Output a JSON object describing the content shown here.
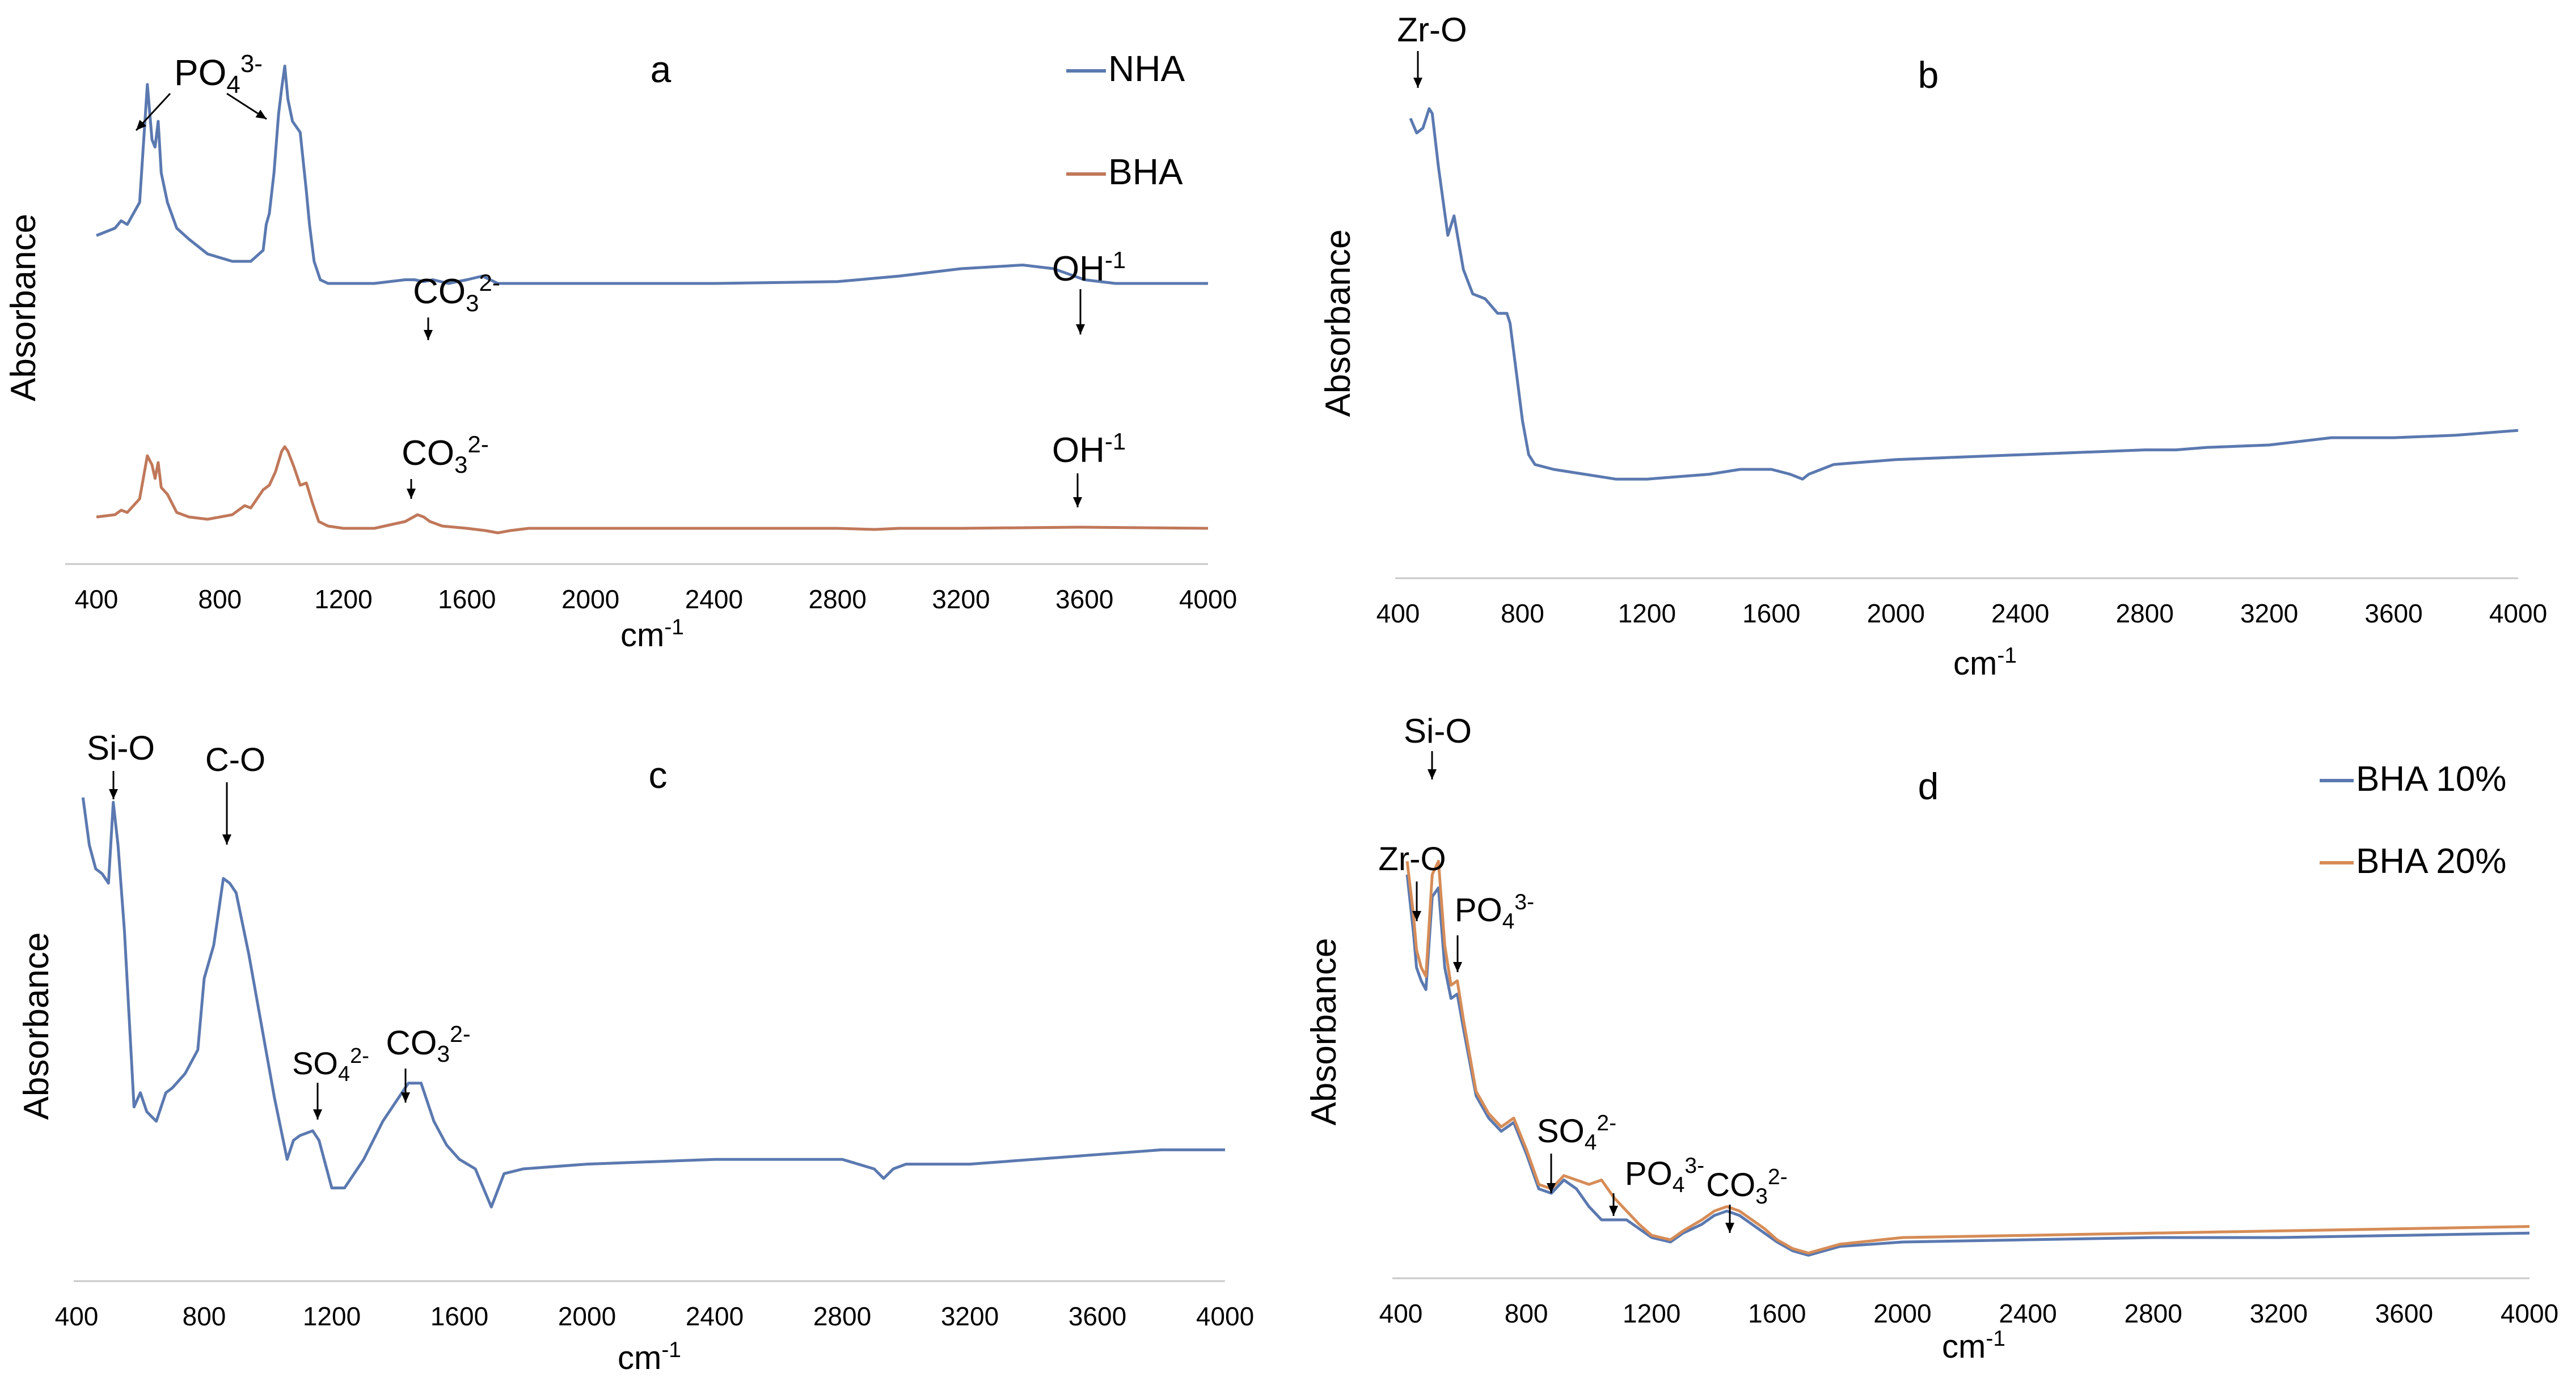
{
  "chart_data": [
    {
      "panel": "a",
      "type": "line",
      "title": "a",
      "xlabel": "cm",
      "xlabel_sup": "-1",
      "ylabel": "Absorbance",
      "xlim": [
        400,
        4000
      ],
      "ylim": [
        0,
        1
      ],
      "x_ticks": [
        "400",
        "800",
        "1200",
        "1600",
        "2000",
        "2400",
        "2800",
        "3200",
        "3600",
        "4000"
      ],
      "legend": [
        "NHA",
        "BHA"
      ],
      "series": [
        {
          "name": "NHA",
          "color": "#5B79B0",
          "x": [
            400,
            460,
            480,
            500,
            540,
            565,
            580,
            590,
            600,
            610,
            630,
            660,
            700,
            760,
            840,
            900,
            940,
            950,
            960,
            975,
            990,
            1000,
            1010,
            1020,
            1035,
            1060,
            1080,
            1090,
            1105,
            1125,
            1150,
            1200,
            1300,
            1400,
            1430,
            1460,
            1490,
            1540,
            1600,
            1650,
            1700,
            1800,
            2000,
            2400,
            2800,
            3000,
            3200,
            3400,
            3500,
            3600,
            3700,
            3800,
            4000
          ],
          "y": [
            0.53,
            0.55,
            0.57,
            0.56,
            0.62,
            0.94,
            0.79,
            0.77,
            0.84,
            0.7,
            0.62,
            0.55,
            0.52,
            0.48,
            0.46,
            0.46,
            0.49,
            0.56,
            0.59,
            0.7,
            0.86,
            0.93,
            0.99,
            0.9,
            0.84,
            0.81,
            0.65,
            0.56,
            0.46,
            0.41,
            0.4,
            0.4,
            0.4,
            0.41,
            0.41,
            0.405,
            0.41,
            0.4,
            0.41,
            0.42,
            0.4,
            0.4,
            0.4,
            0.4,
            0.405,
            0.42,
            0.44,
            0.45,
            0.44,
            0.41,
            0.4,
            0.4,
            0.4
          ]
        },
        {
          "name": "BHA",
          "color": "#C0785A",
          "x": [
            400,
            460,
            480,
            500,
            540,
            565,
            580,
            590,
            600,
            610,
            630,
            660,
            700,
            760,
            840,
            880,
            900,
            940,
            960,
            980,
            1000,
            1010,
            1020,
            1040,
            1060,
            1080,
            1100,
            1120,
            1150,
            1200,
            1300,
            1400,
            1440,
            1460,
            1480,
            1520,
            1600,
            1660,
            1700,
            1740,
            1800,
            2000,
            2400,
            2800,
            2920,
            3000,
            3200,
            3580,
            4000
          ],
          "y": [
            0.12,
            0.13,
            0.15,
            0.14,
            0.2,
            0.39,
            0.35,
            0.29,
            0.36,
            0.25,
            0.22,
            0.14,
            0.12,
            0.11,
            0.13,
            0.17,
            0.16,
            0.24,
            0.26,
            0.32,
            0.41,
            0.43,
            0.41,
            0.34,
            0.26,
            0.27,
            0.18,
            0.1,
            0.08,
            0.07,
            0.07,
            0.1,
            0.13,
            0.12,
            0.1,
            0.08,
            0.07,
            0.06,
            0.05,
            0.06,
            0.07,
            0.07,
            0.07,
            0.07,
            0.065,
            0.07,
            0.07,
            0.075,
            0.07
          ]
        }
      ],
      "annotations": [
        {
          "base": "PO",
          "sub": "4",
          "sup": "3-"
        },
        {
          "base": "CO",
          "sub": "3",
          "sup": "2-"
        },
        {
          "base": "OH",
          "sub": "",
          "sup": "-1"
        },
        {
          "base": "CO",
          "sub": "3",
          "sup": "2-"
        },
        {
          "base": "OH",
          "sub": "",
          "sup": "-1"
        }
      ]
    },
    {
      "panel": "b",
      "type": "line",
      "title": "b",
      "xlabel": "cm",
      "xlabel_sup": "-1",
      "ylabel": "Absorbance",
      "xlim": [
        400,
        4000
      ],
      "ylim": [
        0,
        1
      ],
      "x_ticks": [
        "400",
        "800",
        "1200",
        "1600",
        "2000",
        "2400",
        "2800",
        "3200",
        "3600",
        "4000"
      ],
      "series": [
        {
          "name": "",
          "color": "#5B79B0",
          "x": [
            440,
            460,
            480,
            500,
            510,
            530,
            560,
            580,
            610,
            640,
            680,
            720,
            750,
            760,
            780,
            800,
            820,
            840,
            900,
            1000,
            1100,
            1200,
            1300,
            1400,
            1500,
            1600,
            1660,
            1700,
            1720,
            1760,
            1800,
            2000,
            2400,
            2800,
            2900,
            3000,
            3200,
            3400,
            3600,
            3800,
            4000
          ],
          "y": [
            0.92,
            0.89,
            0.9,
            0.94,
            0.93,
            0.82,
            0.68,
            0.72,
            0.61,
            0.56,
            0.55,
            0.52,
            0.52,
            0.5,
            0.4,
            0.3,
            0.23,
            0.21,
            0.2,
            0.19,
            0.18,
            0.18,
            0.185,
            0.19,
            0.2,
            0.2,
            0.19,
            0.18,
            0.19,
            0.2,
            0.21,
            0.22,
            0.23,
            0.24,
            0.24,
            0.245,
            0.25,
            0.265,
            0.265,
            0.27,
            0.28
          ]
        }
      ],
      "annotations": [
        {
          "base": "Zr-O",
          "sub": "",
          "sup": ""
        }
      ]
    },
    {
      "panel": "c",
      "type": "line",
      "title": "c",
      "xlabel": "cm",
      "xlabel_sup": "-1",
      "ylabel": "Absorbance",
      "xlim": [
        400,
        4000
      ],
      "ylim": [
        0,
        1
      ],
      "x_ticks": [
        "400",
        "800",
        "1200",
        "1600",
        "2000",
        "2400",
        "2800",
        "3200",
        "3600",
        "4000"
      ],
      "series": [
        {
          "name": "",
          "color": "#5B79B0",
          "x": [
            420,
            440,
            460,
            480,
            500,
            515,
            530,
            550,
            580,
            600,
            620,
            650,
            680,
            700,
            740,
            780,
            800,
            830,
            860,
            880,
            900,
            940,
            980,
            1020,
            1060,
            1080,
            1100,
            1140,
            1160,
            1200,
            1240,
            1300,
            1360,
            1400,
            1440,
            1480,
            1520,
            1560,
            1600,
            1650,
            1700,
            1740,
            1800,
            2000,
            2400,
            2800,
            2900,
            2930,
            2960,
            3000,
            3200,
            3600,
            3800,
            4000
          ],
          "y": [
            0.98,
            0.88,
            0.83,
            0.82,
            0.8,
            0.97,
            0.88,
            0.7,
            0.33,
            0.36,
            0.32,
            0.3,
            0.36,
            0.37,
            0.4,
            0.45,
            0.6,
            0.67,
            0.81,
            0.8,
            0.78,
            0.65,
            0.5,
            0.35,
            0.22,
            0.26,
            0.27,
            0.28,
            0.26,
            0.16,
            0.16,
            0.22,
            0.3,
            0.34,
            0.38,
            0.38,
            0.3,
            0.25,
            0.22,
            0.2,
            0.12,
            0.19,
            0.2,
            0.21,
            0.22,
            0.22,
            0.2,
            0.18,
            0.2,
            0.21,
            0.21,
            0.23,
            0.24,
            0.24
          ]
        }
      ],
      "annotations": [
        {
          "base": "Si-O",
          "sub": "",
          "sup": ""
        },
        {
          "base": "C-O",
          "sub": "",
          "sup": ""
        },
        {
          "base": "SO",
          "sub": "4",
          "sup": "2-"
        },
        {
          "base": "CO",
          "sub": "3",
          "sup": "2-"
        }
      ]
    },
    {
      "panel": "d",
      "type": "line",
      "title": "d",
      "xlabel": "cm",
      "xlabel_sup": "-1",
      "ylabel": "Absorbance",
      "xlim": [
        400,
        4000
      ],
      "ylim": [
        0,
        1
      ],
      "x_ticks": [
        "400",
        "800",
        "1200",
        "1600",
        "2000",
        "2400",
        "2800",
        "3200",
        "3600",
        "4000"
      ],
      "legend": [
        "BHA 10%",
        "BHA 20%"
      ],
      "series": [
        {
          "name": "BHA 10%",
          "color": "#5B79B0",
          "x": [
            420,
            440,
            450,
            465,
            480,
            500,
            520,
            540,
            560,
            580,
            600,
            640,
            680,
            720,
            760,
            800,
            840,
            880,
            920,
            960,
            1000,
            1040,
            1080,
            1120,
            1160,
            1200,
            1260,
            1300,
            1360,
            1400,
            1440,
            1480,
            1520,
            1560,
            1600,
            1650,
            1700,
            1800,
            2000,
            2400,
            2800,
            3200,
            3600,
            4000
          ],
          "y": [
            0.83,
            0.7,
            0.62,
            0.59,
            0.57,
            0.78,
            0.8,
            0.62,
            0.55,
            0.56,
            0.48,
            0.33,
            0.28,
            0.25,
            0.27,
            0.2,
            0.12,
            0.11,
            0.14,
            0.12,
            0.08,
            0.05,
            0.05,
            0.05,
            0.03,
            0.01,
            0.0,
            0.02,
            0.04,
            0.06,
            0.07,
            0.06,
            0.04,
            0.02,
            0.0,
            -0.02,
            -0.03,
            -0.01,
            0.0,
            0.005,
            0.01,
            0.01,
            0.015,
            0.02
          ]
        },
        {
          "name": "BHA 20%",
          "color": "#D68C57",
          "x": [
            420,
            440,
            450,
            465,
            480,
            500,
            520,
            540,
            560,
            580,
            600,
            640,
            680,
            720,
            760,
            800,
            840,
            880,
            920,
            960,
            1000,
            1040,
            1080,
            1120,
            1160,
            1200,
            1260,
            1300,
            1360,
            1400,
            1440,
            1480,
            1520,
            1560,
            1600,
            1650,
            1700,
            1800,
            2000,
            2400,
            2800,
            3200,
            3600,
            4000
          ],
          "y": [
            0.86,
            0.74,
            0.66,
            0.62,
            0.6,
            0.83,
            0.86,
            0.67,
            0.58,
            0.59,
            0.5,
            0.34,
            0.29,
            0.26,
            0.28,
            0.21,
            0.13,
            0.12,
            0.15,
            0.14,
            0.13,
            0.14,
            0.1,
            0.07,
            0.04,
            0.015,
            0.005,
            0.025,
            0.05,
            0.07,
            0.08,
            0.07,
            0.05,
            0.03,
            0.005,
            -0.015,
            -0.025,
            -0.005,
            0.01,
            0.015,
            0.02,
            0.025,
            0.03,
            0.035
          ]
        }
      ],
      "annotations": [
        {
          "base": "Si-O",
          "sub": "",
          "sup": ""
        },
        {
          "base": "Zr-O",
          "sub": "",
          "sup": ""
        },
        {
          "base": "PO",
          "sub": "4",
          "sup": "3-"
        },
        {
          "base": "SO",
          "sub": "4",
          "sup": "2-"
        },
        {
          "base": "PO",
          "sub": "4",
          "sup": "3-"
        },
        {
          "base": "CO",
          "sub": "3",
          "sup": "2-"
        }
      ]
    }
  ]
}
